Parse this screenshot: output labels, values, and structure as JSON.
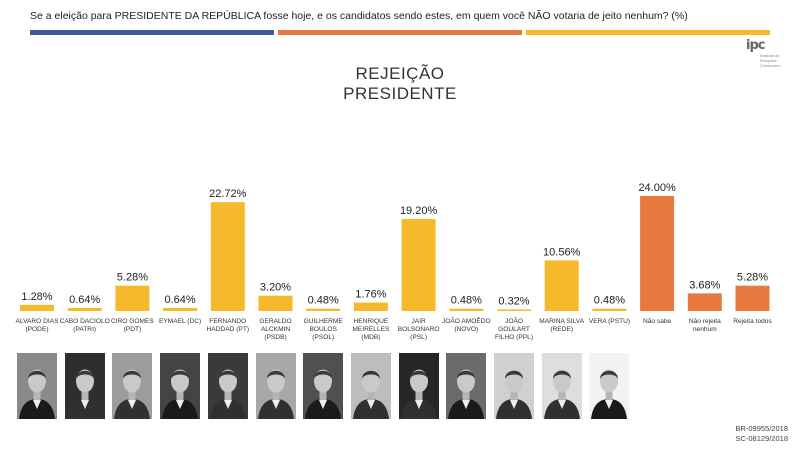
{
  "header": {
    "question": "Se a eleição para PRESIDENTE DA REPÚBLICA fosse hoje, e os candidatos sendo estes, em quem você NÃO votaria de jeito nenhum?  (%)",
    "logo_mark": "ipc",
    "logo_text": "Instituto de Pesquisa Consumers",
    "title_line1": "REJEIÇÃO",
    "title_line2": "PRESIDENTE"
  },
  "footer": {
    "code1": "BR-09955/2018",
    "code2": "SC-08129/2018"
  },
  "colors": {
    "stripe_blue": "#3d5a96",
    "stripe_orange": "#e9783f",
    "stripe_yellow": "#f6b92c",
    "candidate_bar": "#f6b92c",
    "other_bar": "#e9783f"
  },
  "chart_data": {
    "type": "bar",
    "title": "REJEIÇÃO PRESIDENTE",
    "xlabel": "",
    "ylabel": "",
    "ylim": [
      0,
      25
    ],
    "grid": false,
    "legend": "none",
    "categories": [
      [
        "ALVARO DIAS",
        "(PODE)"
      ],
      [
        "CABO DACIOLO",
        "(PATRI)"
      ],
      [
        "CIRO GOMES",
        "(PDT)"
      ],
      [
        "EYMAEL (DC)"
      ],
      [
        "FERNANDO",
        "HADDAD (PT)"
      ],
      [
        "GERALDO",
        "ALCKMIN",
        "(PSDB)"
      ],
      [
        "GUILHERME",
        "BOULOS",
        "(PSOL)"
      ],
      [
        "HENRIQUE",
        "MEIRELLES",
        "(MDB)"
      ],
      [
        "JAIR",
        "BOLSONARO",
        "(PSL)"
      ],
      [
        "JOÃO AMOÊDO",
        "(NOVO)"
      ],
      [
        "JOÃO",
        "GOULART",
        "FILHO (PPL)"
      ],
      [
        "MARINA SILVA",
        "(REDE)"
      ],
      [
        "VERA (PSTU)"
      ],
      [
        "Não sabe"
      ],
      [
        "Não rejeita",
        "nenhum"
      ],
      [
        "Rejeita todos"
      ]
    ],
    "values": [
      1.28,
      0.64,
      5.28,
      0.64,
      22.72,
      3.2,
      0.48,
      1.76,
      19.2,
      0.48,
      0.32,
      10.56,
      0.48,
      24.0,
      3.68,
      5.28
    ],
    "value_labels": [
      "1.28%",
      "0.64%",
      "5.28%",
      "0.64%",
      "22.72%",
      "3.20%",
      "0.48%",
      "1.76%",
      "19.20%",
      "0.48%",
      "0.32%",
      "10.56%",
      "0.48%",
      "24.00%",
      "3.68%",
      "5.28%"
    ],
    "bar_colors": [
      "#f6b92c",
      "#f6b92c",
      "#f6b92c",
      "#f6b92c",
      "#f6b92c",
      "#f6b92c",
      "#f6b92c",
      "#f6b92c",
      "#f6b92c",
      "#f6b92c",
      "#f6b92c",
      "#f6b92c",
      "#f6b92c",
      "#e9783f",
      "#e9783f",
      "#e9783f"
    ]
  }
}
